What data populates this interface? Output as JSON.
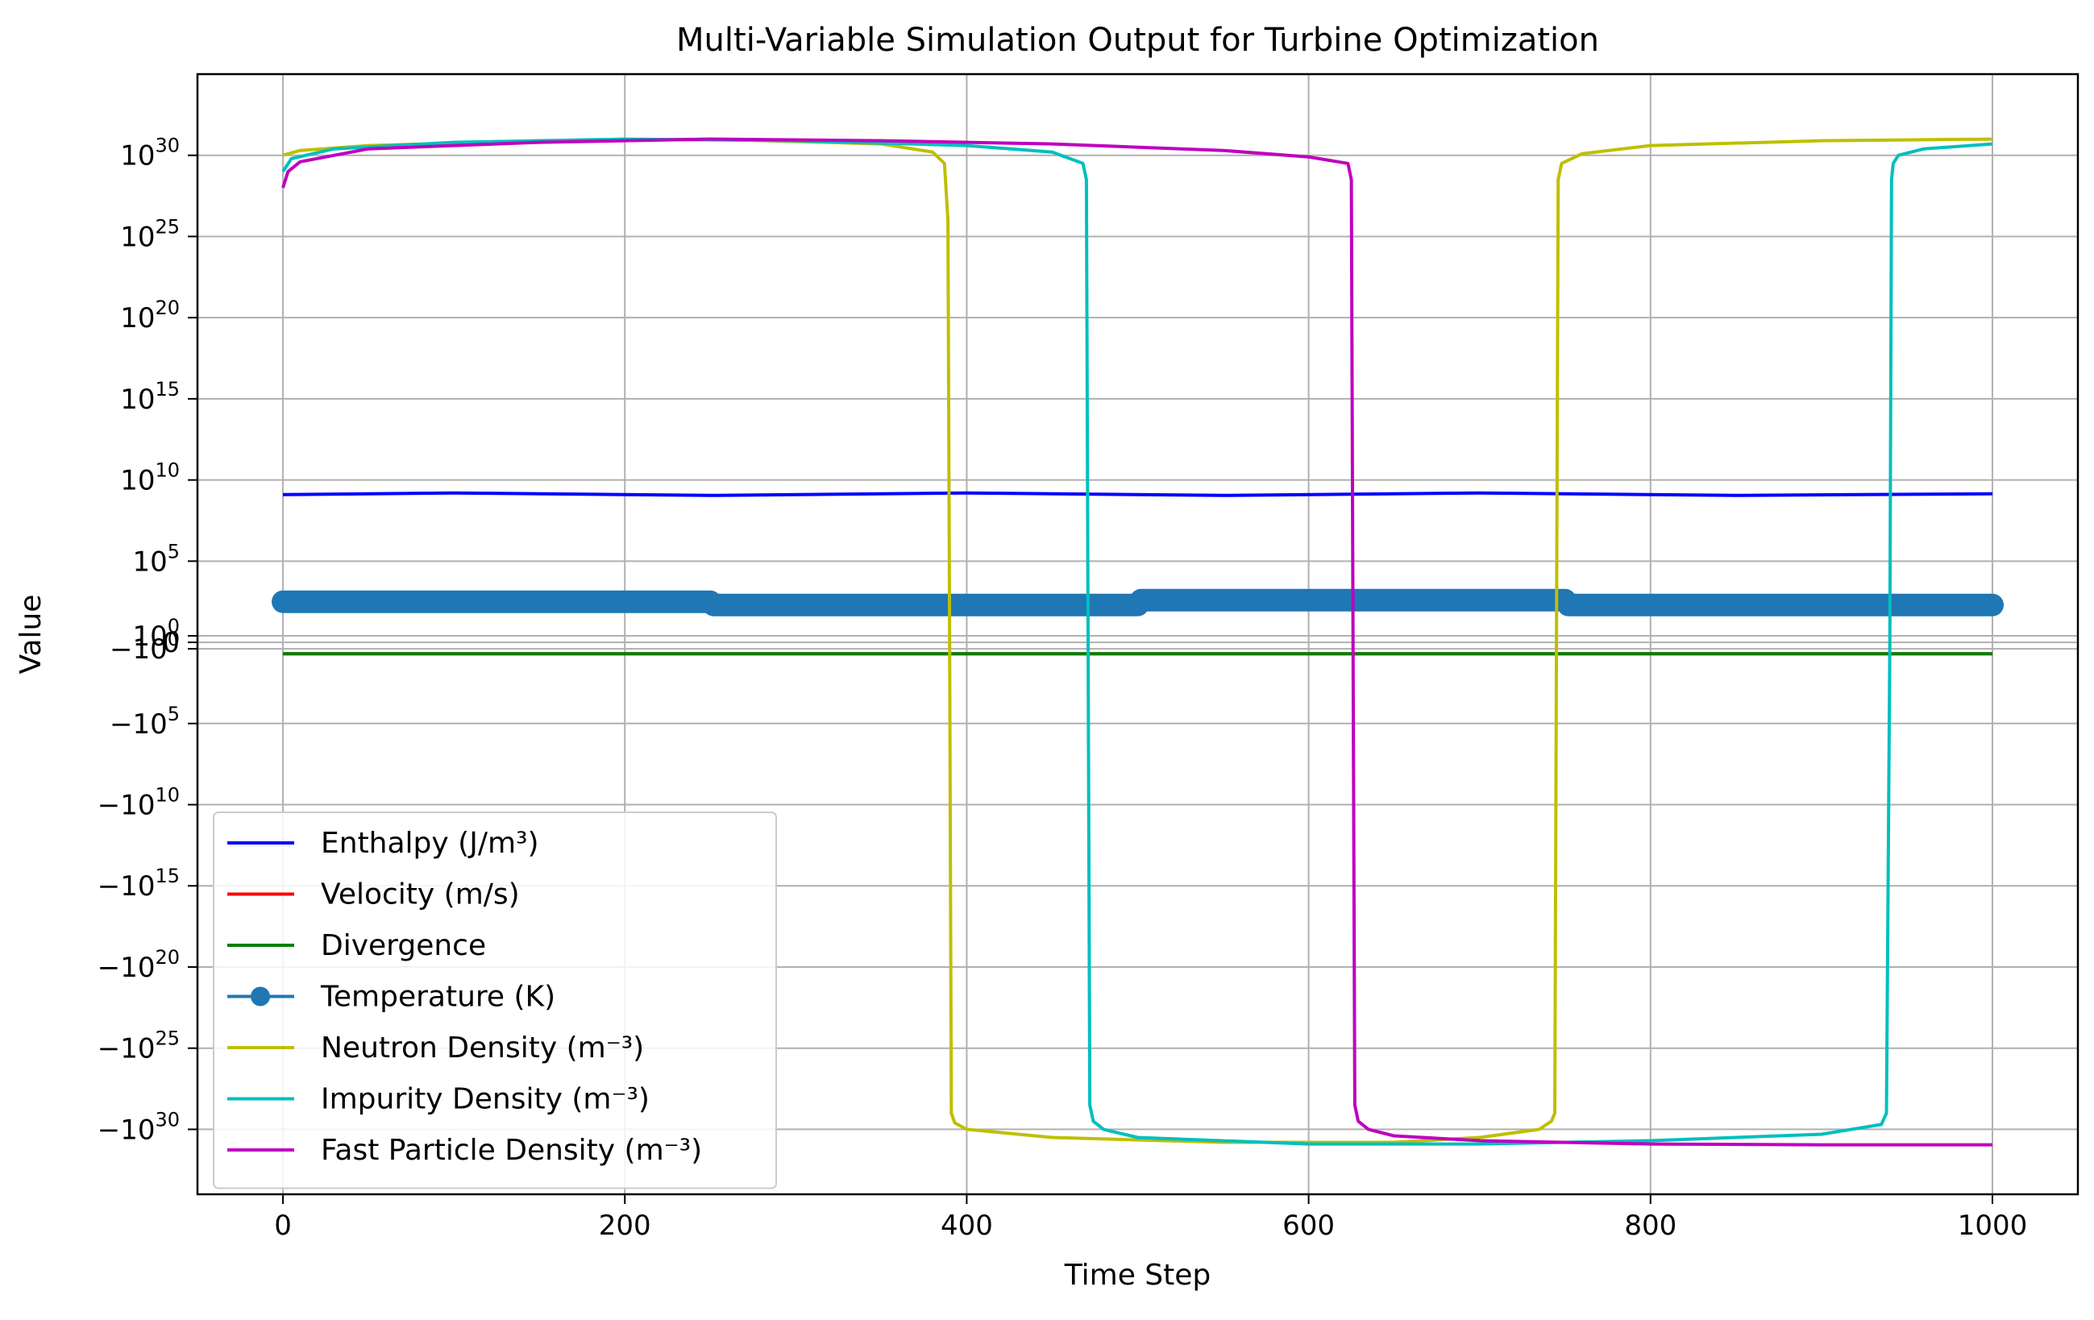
{
  "chart_data": {
    "type": "line",
    "title": "Multi-Variable Simulation Output for Turbine Optimization",
    "xlabel": "Time Step",
    "ylabel": "Value",
    "xlim": [
      -50,
      1050
    ],
    "ylim_exponent": [
      -34,
      35
    ],
    "yscale": "symlog",
    "grid": true,
    "legend_position": "lower-left",
    "x_ticks": [
      0,
      200,
      400,
      600,
      800,
      1000
    ],
    "y_ticks": [
      {
        "sign": "",
        "base": "10",
        "exp": "30",
        "value_exp": 30
      },
      {
        "sign": "",
        "base": "10",
        "exp": "25",
        "value_exp": 25
      },
      {
        "sign": "",
        "base": "10",
        "exp": "20",
        "value_exp": 20
      },
      {
        "sign": "",
        "base": "10",
        "exp": "15",
        "value_exp": 15
      },
      {
        "sign": "",
        "base": "10",
        "exp": "10",
        "value_exp": 10
      },
      {
        "sign": "",
        "base": "10",
        "exp": "5",
        "value_exp": 5
      },
      {
        "sign": "",
        "base": "10",
        "exp": "0",
        "value_exp": 0.4
      },
      {
        "sign": "",
        "base": "0",
        "exp": "",
        "value_exp": 0
      },
      {
        "sign": "−",
        "base": "10",
        "exp": "0",
        "value_exp": -0.4
      },
      {
        "sign": "−",
        "base": "10",
        "exp": "5",
        "value_exp": -5
      },
      {
        "sign": "−",
        "base": "10",
        "exp": "10",
        "value_exp": -10
      },
      {
        "sign": "−",
        "base": "10",
        "exp": "15",
        "value_exp": -15
      },
      {
        "sign": "−",
        "base": "10",
        "exp": "20",
        "value_exp": -20
      },
      {
        "sign": "−",
        "base": "10",
        "exp": "25",
        "value_exp": -25
      },
      {
        "sign": "−",
        "base": "10",
        "exp": "30",
        "value_exp": -30
      }
    ],
    "series": [
      {
        "name": "Enthalpy (J/m³)",
        "color": "#0000ff",
        "marker": false,
        "x": [
          0,
          100,
          250,
          400,
          550,
          700,
          850,
          1000
        ],
        "y_log10": [
          9.1,
          9.2,
          9.05,
          9.2,
          9.05,
          9.2,
          9.05,
          9.15
        ]
      },
      {
        "name": "Velocity (m/s)",
        "color": "#ff0000",
        "marker": false,
        "x": [
          0,
          1000
        ],
        "y_log10": [
          -0.7,
          -0.7
        ]
      },
      {
        "name": "Divergence",
        "color": "#008000",
        "marker": false,
        "x": [
          0,
          1000
        ],
        "y_log10": [
          -0.7,
          -0.7
        ]
      },
      {
        "name": "Temperature (K)",
        "color": "#1f77b4",
        "marker": true,
        "x": [
          0,
          250,
          252,
          500,
          502,
          750,
          752,
          1000
        ],
        "y_log10": [
          2.5,
          2.5,
          2.3,
          2.3,
          2.6,
          2.6,
          2.3,
          2.3
        ]
      },
      {
        "name": "Neutron Density (m⁻³)",
        "color": "#bfbf00",
        "marker": false,
        "x": [
          0,
          10,
          50,
          150,
          250,
          350,
          380,
          387,
          389,
          390,
          391,
          393,
          400,
          450,
          550,
          650,
          700,
          735,
          742,
          744,
          745,
          746,
          748,
          760,
          800,
          900,
          1000
        ],
        "y_log10": [
          30.0,
          30.3,
          30.6,
          30.9,
          31.0,
          30.7,
          30.2,
          29.5,
          26.0,
          0,
          -29.0,
          -29.6,
          -30.0,
          -30.5,
          -30.8,
          -30.8,
          -30.5,
          -30.0,
          -29.5,
          -29.0,
          0,
          28.5,
          29.5,
          30.1,
          30.6,
          30.9,
          31.0
        ]
      },
      {
        "name": "Impurity Density (m⁻³)",
        "color": "#00bfbf",
        "marker": false,
        "x": [
          0,
          5,
          30,
          100,
          200,
          300,
          400,
          450,
          468,
          470,
          471,
          472,
          474,
          480,
          500,
          600,
          700,
          800,
          900,
          935,
          938,
          940,
          941,
          942,
          945,
          960,
          1000
        ],
        "y_log10": [
          29.0,
          29.8,
          30.4,
          30.8,
          31.0,
          30.9,
          30.6,
          30.2,
          29.5,
          28.5,
          0,
          -28.5,
          -29.5,
          -30.0,
          -30.5,
          -30.9,
          -30.9,
          -30.7,
          -30.3,
          -29.7,
          -29.0,
          0,
          28.5,
          29.5,
          30.0,
          30.4,
          30.7
        ]
      },
      {
        "name": "Fast Particle Density (m⁻³)",
        "color": "#bf00bf",
        "marker": false,
        "x": [
          0,
          3,
          10,
          50,
          150,
          250,
          350,
          450,
          550,
          600,
          623,
          625,
          626,
          627,
          629,
          635,
          650,
          700,
          800,
          900,
          1000
        ],
        "y_log10": [
          28.0,
          29.0,
          29.6,
          30.4,
          30.8,
          31.0,
          30.9,
          30.7,
          30.3,
          29.9,
          29.5,
          28.5,
          0,
          -28.5,
          -29.5,
          -30.0,
          -30.4,
          -30.7,
          -30.9,
          -30.95,
          -30.95
        ]
      }
    ]
  }
}
